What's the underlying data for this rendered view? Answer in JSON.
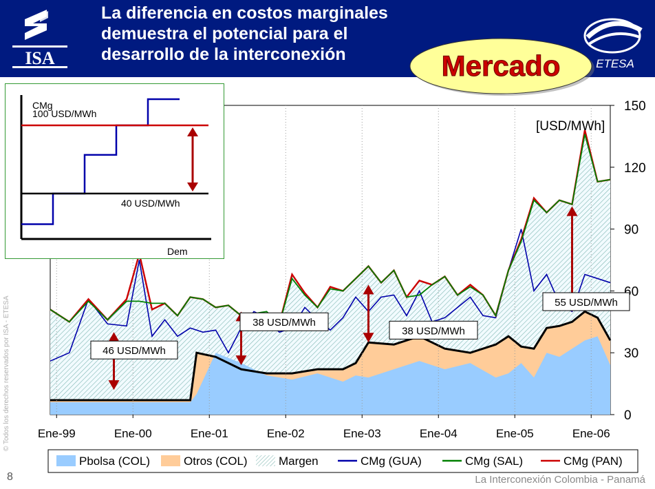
{
  "slide": {
    "title_lines": [
      "La diferencia en costos marginales",
      "demuestra el potencial para el",
      "desarrollo de la interconexión"
    ],
    "badge": "Mercado",
    "logo_left": "ISA",
    "logo_right": "ETESA",
    "slide_number": "8",
    "footer": "La Interconexión  Colombia - Panamá",
    "side_copyright": "© Todos los derechos reservados por ISA - ETESA"
  },
  "chart_data": [
    {
      "type": "area",
      "title": "",
      "unit_label": "[USD/MWh]",
      "x_ticks": [
        "Ene-99",
        "Ene-00",
        "Ene-01",
        "Ene-02",
        "Ene-03",
        "Ene-04",
        "Ene-05",
        "Ene-06"
      ],
      "x_range": [
        0,
        88
      ],
      "ylim": [
        0,
        150
      ],
      "y_ticks": [
        0,
        30,
        60,
        90,
        120,
        150
      ],
      "grid": "vertical dotted gridlines at each January",
      "legend_position": "bottom",
      "legend": [
        "Pbolsa (COL)",
        "Otros (COL)",
        "Margen",
        "CMg (GUA)",
        "CMg (SAL)",
        "CMg (PAN)"
      ],
      "series": [
        {
          "name": "Pbolsa (COL)",
          "style": "area",
          "color": "#99ccff",
          "x": [
            0,
            6,
            12,
            18,
            22,
            23,
            26,
            30,
            34,
            38,
            42,
            46,
            48,
            50,
            54,
            58,
            62,
            66,
            70,
            72,
            74,
            76,
            78,
            80,
            82,
            84,
            86,
            88
          ],
          "y": [
            6,
            6,
            6,
            6,
            6,
            10,
            30,
            25,
            19,
            17,
            20,
            16,
            19,
            18,
            22,
            26,
            22,
            25,
            18,
            20,
            25,
            18,
            30,
            28,
            32,
            36,
            38,
            24
          ]
        },
        {
          "name": "Otros (COL)",
          "style": "area",
          "color": "#ffcc99",
          "x": [
            0,
            6,
            12,
            18,
            22,
            23,
            26,
            30,
            34,
            38,
            42,
            46,
            48,
            50,
            54,
            58,
            62,
            66,
            70,
            72,
            74,
            76,
            78,
            80,
            82,
            84,
            86,
            88
          ],
          "y": [
            7,
            7,
            7,
            7,
            7,
            30,
            28,
            22,
            20,
            20,
            22,
            22,
            25,
            35,
            34,
            38,
            32,
            30,
            34,
            38,
            33,
            32,
            42,
            43,
            45,
            50,
            47,
            36
          ]
        },
        {
          "name": "Margen",
          "style": "hatched area",
          "x": [
            0,
            3,
            6,
            9,
            12,
            14,
            16,
            18,
            20,
            22,
            24,
            26,
            28,
            30,
            32,
            34,
            36,
            38,
            40,
            42,
            44,
            46,
            48,
            50,
            52,
            54,
            56,
            58,
            60,
            62,
            64,
            66,
            68,
            70,
            72,
            74,
            76,
            78,
            80,
            82,
            84,
            86,
            88
          ],
          "y": [
            51,
            45,
            56,
            46,
            56,
            78,
            51,
            54,
            48,
            57,
            56,
            52,
            53,
            48,
            49,
            49,
            44,
            68,
            59,
            52,
            62,
            60,
            66,
            72,
            64,
            70,
            57,
            65,
            63,
            67,
            58,
            63,
            58,
            48,
            70,
            85,
            105,
            98,
            104,
            102,
            138,
            113,
            114
          ]
        },
        {
          "name": "CMg (GUA)",
          "color": "#0000aa",
          "x": [
            0,
            3,
            6,
            9,
            12,
            14,
            16,
            18,
            20,
            22,
            24,
            26,
            28,
            30,
            32,
            34,
            36,
            38,
            40,
            42,
            44,
            46,
            48,
            50,
            52,
            54,
            56,
            58,
            60,
            62,
            64,
            66,
            68,
            70,
            72,
            74,
            76,
            78,
            80,
            82,
            84,
            86,
            88
          ],
          "y": [
            26,
            30,
            56,
            44,
            43,
            75,
            38,
            46,
            38,
            42,
            40,
            41,
            30,
            42,
            50,
            47,
            40,
            42,
            52,
            46,
            41,
            47,
            57,
            50,
            57,
            58,
            48,
            60,
            45,
            47,
            52,
            57,
            48,
            47,
            70,
            90,
            60,
            68,
            54,
            50,
            68,
            66,
            64
          ]
        },
        {
          "name": "CMg (SAL)",
          "color": "#008000",
          "x": [
            0,
            3,
            6,
            9,
            12,
            14,
            16,
            18,
            20,
            22,
            24,
            26,
            28,
            30,
            32,
            34,
            36,
            38,
            40,
            42,
            44,
            46,
            48,
            50,
            52,
            54,
            56,
            58,
            60,
            62,
            64,
            66,
            68,
            70,
            72,
            74,
            76,
            78,
            80,
            82,
            84,
            86,
            88
          ],
          "y": [
            51,
            45,
            55,
            46,
            55,
            55,
            54,
            54,
            48,
            57,
            56,
            52,
            53,
            48,
            49,
            50,
            44,
            66,
            58,
            52,
            61,
            60,
            66,
            72,
            64,
            70,
            57,
            58,
            63,
            67,
            58,
            62,
            58,
            48,
            70,
            84,
            104,
            98,
            104,
            102,
            136,
            113,
            114
          ]
        },
        {
          "name": "CMg (PAN)",
          "color": "#cc0000",
          "x": [
            0,
            3,
            6,
            9,
            12,
            14,
            16,
            18,
            20,
            22,
            24,
            26,
            28,
            30,
            32,
            34,
            36,
            38,
            40,
            42,
            44,
            46,
            48,
            50,
            52,
            54,
            56,
            58,
            60,
            62,
            64,
            66,
            68,
            70,
            72,
            74,
            76,
            78,
            80,
            82,
            84,
            86,
            88
          ],
          "y": [
            51,
            45,
            56,
            46,
            56,
            78,
            51,
            54,
            48,
            57,
            56,
            52,
            53,
            48,
            49,
            49,
            44,
            68,
            59,
            52,
            62,
            60,
            66,
            72,
            64,
            70,
            57,
            65,
            63,
            67,
            58,
            63,
            58,
            48,
            70,
            85,
            105,
            98,
            104,
            102,
            138,
            113,
            114
          ]
        }
      ],
      "annotations": [
        {
          "text": "46 USD/MWh",
          "x": 10,
          "y_from": 12,
          "y_to": 40
        },
        {
          "text": "38 USD/MWh",
          "x": 30,
          "y_from": 24,
          "y_to": 50
        },
        {
          "text": "38 USD/MWh",
          "x": 50,
          "y_from": 35,
          "y_to": 63
        },
        {
          "text": "55 USD/MWh",
          "x": 82,
          "y_from": 50,
          "y_to": 101
        }
      ]
    },
    {
      "type": "line",
      "title": "",
      "xlabel": "Dem",
      "ylabel": "CMg",
      "reference_lines": [
        {
          "label": "100 USD/MWh",
          "value": 100,
          "color": "#cc0000"
        },
        {
          "label": "40 USD/MWh",
          "value": 40,
          "color": "#000000"
        }
      ],
      "supply_curve": {
        "style": "step",
        "color": "#0000aa",
        "steps": [
          13,
          40,
          74,
          100,
          123
        ]
      }
    }
  ]
}
